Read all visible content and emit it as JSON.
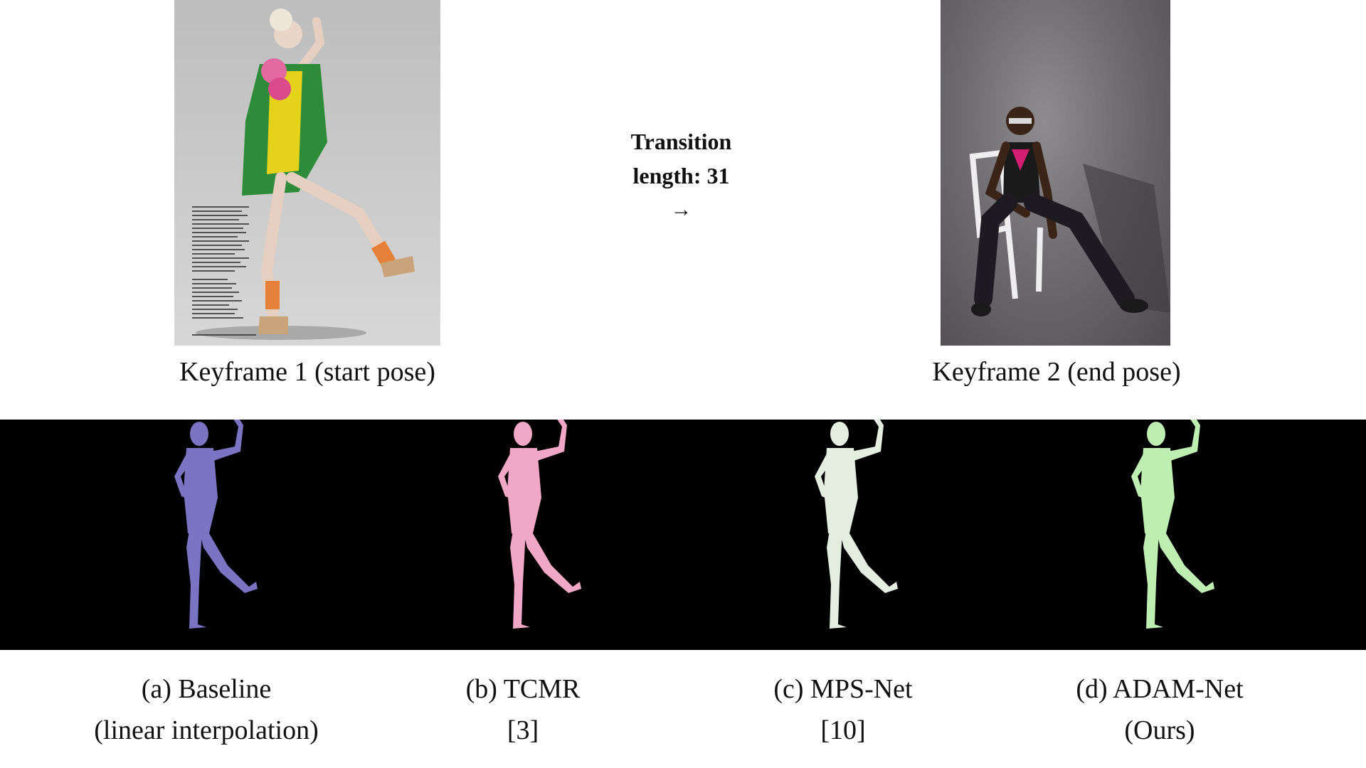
{
  "keyframe1": {
    "caption": "Keyframe 1 (start pose)"
  },
  "keyframe2": {
    "caption": "Keyframe 2 (end pose)"
  },
  "transition": {
    "line1": "Transition",
    "line2": "length: 31",
    "arrow": "→"
  },
  "methods": [
    {
      "line1": "(a) Baseline",
      "line2": "(linear interpolation)",
      "color": "#7b74c2"
    },
    {
      "line1": "(b) TCMR",
      "line2": "[3]",
      "color": "#f0a8c6"
    },
    {
      "line1": "(c) MPS-Net",
      "line2": "[10]",
      "color": "#e4eee0"
    },
    {
      "line1": "(d) ADAM-Net",
      "line2": "(Ours)",
      "color": "#bfeeb2"
    }
  ],
  "colors": {
    "strip_background": "#000000",
    "page_background": "#ffffff"
  }
}
